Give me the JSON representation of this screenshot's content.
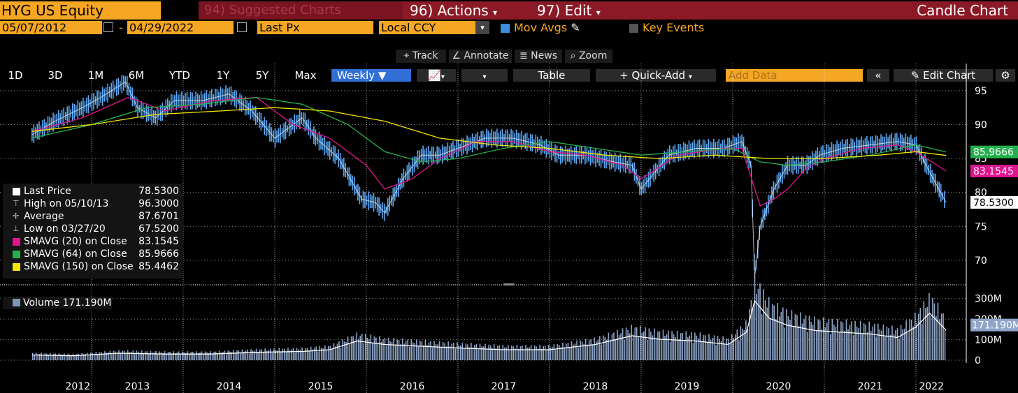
{
  "header": {
    "ticker": "HYG US Equity",
    "suggested": "94) Suggested Charts",
    "actions": "96) Actions",
    "edit": "97) Edit",
    "chart_type": "Candle Chart"
  },
  "controls": {
    "start_date": "05/07/2012",
    "end_date": "04/29/2022",
    "field": "Last Px",
    "currency": "Local CCY",
    "mov_avgs": "Mov Avgs",
    "key_events": "Key Events"
  },
  "tabs": [
    "1D",
    "3D",
    "1M",
    "6M",
    "YTD",
    "1Y",
    "5Y",
    "Max"
  ],
  "toolbar": {
    "period": "Weekly",
    "table": "Table",
    "quick_add": "+ Quick-Add",
    "add_data": "Add Data",
    "edit_chart": "Edit Chart"
  },
  "tools": {
    "track": "Track",
    "annotate": "Annotate",
    "news": "News",
    "zoom": "Zoom"
  },
  "legend": [
    {
      "label": "Last Price",
      "value": "78.5300",
      "color": "#ffffff"
    },
    {
      "label": "High on 05/10/13",
      "value": "96.3000",
      "color": ""
    },
    {
      "label": "Average",
      "value": "87.6701",
      "color": ""
    },
    {
      "label": "Low on 03/27/20",
      "value": "67.5200",
      "color": ""
    },
    {
      "label": "SMAVG (20)  on Close",
      "value": "83.1545",
      "color": "#e0148c"
    },
    {
      "label": "SMAVG (64)  on Close",
      "value": "85.9666",
      "color": "#22b14c"
    },
    {
      "label": "SMAVG (150)  on Close",
      "value": "85.4462",
      "color": "#f2e600"
    }
  ],
  "volume_legend": "Volume 171.190M",
  "price_tags": [
    "85.9666",
    "83.1545",
    "78.5300"
  ],
  "volume_tag": "171.190M",
  "chart_data": [
    {
      "type": "line",
      "x_unit": "year",
      "x_ticks": [
        "2012",
        "2013",
        "2014",
        "2015",
        "2016",
        "2017",
        "2018",
        "2019",
        "2020",
        "2021",
        "2022"
      ],
      "yticks": [
        70,
        75,
        80,
        85,
        90,
        95
      ],
      "ylim": [
        67,
        99
      ],
      "series": [
        {
          "name": "Last Price",
          "color": "#2f86e8",
          "x": [
            2012.35,
            2012.6,
            2012.9,
            2013.1,
            2013.37,
            2013.5,
            2013.7,
            2013.9,
            2014.2,
            2014.5,
            2014.75,
            2015.0,
            2015.3,
            2015.45,
            2015.7,
            2015.95,
            2016.1,
            2016.2,
            2016.4,
            2016.6,
            2016.8,
            2017.0,
            2017.3,
            2017.6,
            2017.9,
            2018.1,
            2018.4,
            2018.7,
            2018.9,
            2019.0,
            2019.3,
            2019.6,
            2019.9,
            2020.1,
            2020.2,
            2020.24,
            2020.3,
            2020.45,
            2020.6,
            2020.8,
            2020.95,
            2021.2,
            2021.5,
            2021.8,
            2022.0,
            2022.15,
            2022.33
          ],
          "values": [
            88.5,
            90.5,
            92.5,
            94,
            96.3,
            92.5,
            91,
            93.5,
            93.5,
            94.5,
            92,
            88,
            91,
            88,
            85,
            79,
            78.5,
            77,
            82,
            85.5,
            85.5,
            86.5,
            88,
            88,
            87,
            85.5,
            85.5,
            84.5,
            84,
            80.5,
            85.5,
            86.5,
            86.5,
            87.5,
            84,
            67.5,
            75,
            80.5,
            84,
            84,
            85.5,
            86.5,
            87,
            87.5,
            87,
            83,
            78.5
          ]
        },
        {
          "name": "SMAVG (20)",
          "color": "#e0148c",
          "x": [
            2012.35,
            2012.9,
            2013.4,
            2013.8,
            2014.3,
            2014.8,
            2015.2,
            2015.6,
            2016.0,
            2016.2,
            2016.5,
            2016.8,
            2017.2,
            2017.6,
            2018.0,
            2018.4,
            2018.8,
            2019.0,
            2019.4,
            2019.9,
            2020.1,
            2020.3,
            2020.45,
            2020.6,
            2020.8,
            2021.0,
            2021.4,
            2021.8,
            2022.0,
            2022.33
          ],
          "values": [
            89,
            91,
            94,
            92,
            93.5,
            94,
            90,
            88,
            84,
            80.5,
            82,
            85,
            87.5,
            87.5,
            86,
            85.5,
            84,
            82,
            85.5,
            86.5,
            86.5,
            78,
            79,
            80.5,
            83.5,
            85,
            86.5,
            87,
            86,
            83.1545
          ]
        },
        {
          "name": "SMAVG (64)",
          "color": "#22b14c",
          "x": [
            2012.35,
            2013.0,
            2013.6,
            2014.2,
            2014.8,
            2015.3,
            2015.8,
            2016.2,
            2016.6,
            2017.0,
            2017.5,
            2018.0,
            2018.5,
            2019.0,
            2019.5,
            2020.0,
            2020.3,
            2020.6,
            2021.0,
            2021.5,
            2022.0,
            2022.33
          ],
          "values": [
            88,
            90,
            92.5,
            93,
            94,
            93,
            90,
            86,
            84.5,
            85,
            86.5,
            87.5,
            86.5,
            85.5,
            86,
            86.5,
            84.5,
            84,
            84.5,
            85.5,
            87,
            85.9666
          ]
        },
        {
          "name": "SMAVG (150)",
          "color": "#f2e600",
          "x": [
            2012.35,
            2013.0,
            2013.7,
            2014.4,
            2015.0,
            2015.6,
            2016.2,
            2016.8,
            2017.4,
            2018.0,
            2018.6,
            2019.2,
            2019.8,
            2020.4,
            2021.0,
            2021.6,
            2022.0,
            2022.33
          ],
          "values": [
            89,
            90,
            91.5,
            92,
            92.5,
            92,
            90.5,
            88,
            87,
            86.5,
            85.5,
            85,
            85.5,
            85,
            85,
            85.5,
            86,
            85.4462
          ]
        }
      ]
    },
    {
      "type": "bar",
      "name": "Volume",
      "unit": "M",
      "yticks": [
        0,
        100,
        200,
        300
      ],
      "ylim": [
        0,
        350
      ],
      "x": [
        2012.35,
        2012.8,
        2013.3,
        2013.8,
        2014.3,
        2014.8,
        2015.3,
        2015.6,
        2015.9,
        2016.2,
        2016.6,
        2017.0,
        2017.5,
        2018.0,
        2018.5,
        2018.9,
        2019.2,
        2019.6,
        2019.95,
        2020.15,
        2020.24,
        2020.4,
        2020.6,
        2020.9,
        2021.2,
        2021.5,
        2021.8,
        2022.0,
        2022.15,
        2022.33
      ],
      "values": [
        30,
        25,
        40,
        35,
        35,
        45,
        50,
        60,
        110,
        90,
        80,
        70,
        60,
        60,
        90,
        140,
        120,
        110,
        90,
        160,
        340,
        240,
        200,
        170,
        160,
        150,
        130,
        190,
        270,
        171.19
      ]
    }
  ]
}
